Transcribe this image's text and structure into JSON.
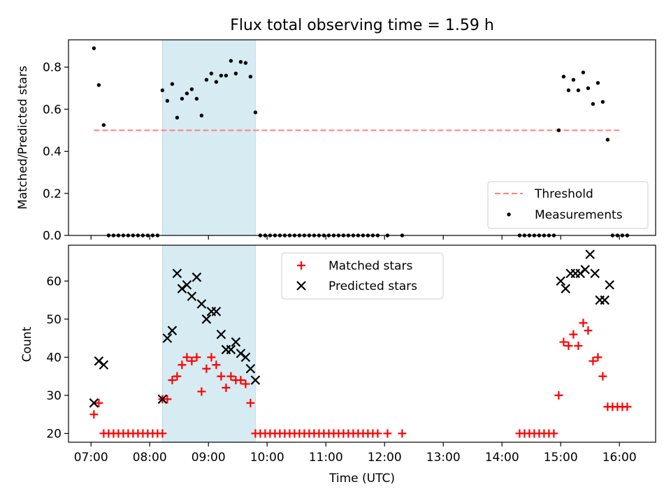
{
  "title": "Flux total observing time = 1.59 h",
  "colors": {
    "threshold": "#ff7f7f",
    "measurement": "#000000",
    "matched": "#ff0000",
    "predicted": "#000000",
    "highlight": "#add8e6"
  },
  "chart_data": [
    {
      "type": "scatter",
      "xlabel": "",
      "ylabel": "Matched/Predicted stars",
      "x_axis": "time (UTC)",
      "xlim": [
        "06:37",
        "16:37"
      ],
      "ylim": [
        0,
        0.93
      ],
      "yticks": [
        "0.0",
        "0.2",
        "0.4",
        "0.6",
        "0.8"
      ],
      "ytick_values": [
        0,
        0.2,
        0.4,
        0.6,
        0.8
      ],
      "grid": false,
      "legend_position": "lower right",
      "highlight_span": [
        "08:13",
        "09:48"
      ],
      "threshold": {
        "name": "Threshold",
        "value": 0.5,
        "x_range": [
          "07:03",
          "16:03"
        ]
      },
      "series": [
        {
          "name": "Measurements",
          "marker": "dot",
          "points": [
            [
              "07:03",
              0.89
            ],
            [
              "07:08",
              0.715
            ],
            [
              "07:13",
              0.525
            ],
            [
              "08:13",
              0.69
            ],
            [
              "08:18",
              0.64
            ],
            [
              "08:23",
              0.72
            ],
            [
              "08:28",
              0.56
            ],
            [
              "08:33",
              0.65
            ],
            [
              "08:38",
              0.675
            ],
            [
              "08:43",
              0.695
            ],
            [
              "08:48",
              0.65
            ],
            [
              "08:53",
              0.57
            ],
            [
              "08:58",
              0.74
            ],
            [
              "09:03",
              0.77
            ],
            [
              "09:08",
              0.73
            ],
            [
              "09:13",
              0.76
            ],
            [
              "09:18",
              0.76
            ],
            [
              "09:23",
              0.83
            ],
            [
              "09:28",
              0.77
            ],
            [
              "09:33",
              0.825
            ],
            [
              "09:38",
              0.82
            ],
            [
              "09:43",
              0.755
            ],
            [
              "09:48",
              0.585
            ],
            [
              "14:58",
              0.5
            ],
            [
              "15:03",
              0.755
            ],
            [
              "15:08",
              0.69
            ],
            [
              "15:13",
              0.74
            ],
            [
              "15:18",
              0.69
            ],
            [
              "15:23",
              0.775
            ],
            [
              "15:28",
              0.7
            ],
            [
              "15:33",
              0.625
            ],
            [
              "15:38",
              0.725
            ],
            [
              "15:43",
              0.635
            ],
            [
              "15:48",
              0.455
            ],
            [
              "07:18",
              0
            ],
            [
              "07:23",
              0
            ],
            [
              "07:28",
              0
            ],
            [
              "07:33",
              0
            ],
            [
              "07:38",
              0
            ],
            [
              "07:43",
              0
            ],
            [
              "07:48",
              0
            ],
            [
              "07:53",
              0
            ],
            [
              "07:58",
              0
            ],
            [
              "08:03",
              0
            ],
            [
              "08:08",
              0
            ],
            [
              "09:53",
              0
            ],
            [
              "09:58",
              0
            ],
            [
              "10:03",
              0
            ],
            [
              "10:08",
              0
            ],
            [
              "10:13",
              0
            ],
            [
              "10:18",
              0
            ],
            [
              "10:23",
              0
            ],
            [
              "10:28",
              0
            ],
            [
              "10:33",
              0
            ],
            [
              "10:38",
              0
            ],
            [
              "10:43",
              0
            ],
            [
              "10:48",
              0
            ],
            [
              "10:53",
              0
            ],
            [
              "10:58",
              0
            ],
            [
              "11:03",
              0
            ],
            [
              "11:08",
              0
            ],
            [
              "11:13",
              0
            ],
            [
              "11:18",
              0
            ],
            [
              "11:23",
              0
            ],
            [
              "11:28",
              0
            ],
            [
              "11:33",
              0
            ],
            [
              "11:38",
              0
            ],
            [
              "11:43",
              0
            ],
            [
              "11:48",
              0
            ],
            [
              "11:53",
              0
            ],
            [
              "12:03",
              0
            ],
            [
              "12:18",
              0
            ],
            [
              "14:18",
              0
            ],
            [
              "14:23",
              0
            ],
            [
              "14:28",
              0
            ],
            [
              "14:33",
              0
            ],
            [
              "14:38",
              0
            ],
            [
              "14:43",
              0
            ],
            [
              "14:48",
              0
            ],
            [
              "14:53",
              0
            ],
            [
              "15:53",
              0
            ],
            [
              "15:58",
              0
            ],
            [
              "16:03",
              0
            ],
            [
              "16:08",
              0
            ]
          ]
        }
      ]
    },
    {
      "type": "scatter",
      "xlabel": "Time (UTC)",
      "ylabel": "Count",
      "x_axis": "time (UTC)",
      "xlim": [
        "06:37",
        "16:37"
      ],
      "ylim": [
        17.7,
        69.4
      ],
      "xticks": [
        "07:00",
        "08:00",
        "09:00",
        "10:00",
        "11:00",
        "12:00",
        "13:00",
        "14:00",
        "15:00",
        "16:00"
      ],
      "yticks": [
        "20",
        "30",
        "40",
        "50",
        "60"
      ],
      "ytick_values": [
        20,
        30,
        40,
        50,
        60
      ],
      "grid": false,
      "legend_position": "upper center",
      "highlight_span": [
        "08:13",
        "09:48"
      ],
      "series": [
        {
          "name": "Matched stars",
          "marker": "plus",
          "points": [
            [
              "07:03",
              25
            ],
            [
              "07:08",
              28
            ],
            [
              "08:13",
              29
            ],
            [
              "08:18",
              29
            ],
            [
              "08:23",
              34
            ],
            [
              "08:28",
              35
            ],
            [
              "08:33",
              38
            ],
            [
              "08:38",
              40
            ],
            [
              "08:43",
              39
            ],
            [
              "08:48",
              40
            ],
            [
              "08:53",
              31
            ],
            [
              "08:58",
              37
            ],
            [
              "09:03",
              40
            ],
            [
              "09:08",
              38
            ],
            [
              "09:13",
              35
            ],
            [
              "09:18",
              32
            ],
            [
              "09:23",
              35
            ],
            [
              "09:28",
              34
            ],
            [
              "09:33",
              34
            ],
            [
              "09:38",
              33
            ],
            [
              "09:43",
              28
            ],
            [
              "14:58",
              30
            ],
            [
              "15:03",
              44
            ],
            [
              "15:08",
              43
            ],
            [
              "15:13",
              46
            ],
            [
              "15:18",
              43
            ],
            [
              "15:23",
              49
            ],
            [
              "15:28",
              47
            ],
            [
              "15:33",
              39
            ],
            [
              "15:38",
              40
            ],
            [
              "15:43",
              35
            ],
            [
              "15:48",
              27
            ],
            [
              "15:53",
              27
            ],
            [
              "15:58",
              27
            ],
            [
              "16:03",
              27
            ],
            [
              "16:08",
              27
            ],
            [
              "07:13",
              20
            ],
            [
              "07:18",
              20
            ],
            [
              "07:23",
              20
            ],
            [
              "07:28",
              20
            ],
            [
              "07:33",
              20
            ],
            [
              "07:38",
              20
            ],
            [
              "07:43",
              20
            ],
            [
              "07:48",
              20
            ],
            [
              "07:53",
              20
            ],
            [
              "07:58",
              20
            ],
            [
              "08:03",
              20
            ],
            [
              "08:08",
              20
            ],
            [
              "08:13",
              20
            ],
            [
              "09:48",
              20
            ],
            [
              "09:53",
              20
            ],
            [
              "09:58",
              20
            ],
            [
              "10:03",
              20
            ],
            [
              "10:08",
              20
            ],
            [
              "10:13",
              20
            ],
            [
              "10:18",
              20
            ],
            [
              "10:23",
              20
            ],
            [
              "10:28",
              20
            ],
            [
              "10:33",
              20
            ],
            [
              "10:38",
              20
            ],
            [
              "10:43",
              20
            ],
            [
              "10:48",
              20
            ],
            [
              "10:53",
              20
            ],
            [
              "10:58",
              20
            ],
            [
              "11:03",
              20
            ],
            [
              "11:08",
              20
            ],
            [
              "11:13",
              20
            ],
            [
              "11:18",
              20
            ],
            [
              "11:23",
              20
            ],
            [
              "11:28",
              20
            ],
            [
              "11:33",
              20
            ],
            [
              "11:38",
              20
            ],
            [
              "11:43",
              20
            ],
            [
              "11:48",
              20
            ],
            [
              "11:53",
              20
            ],
            [
              "12:03",
              20
            ],
            [
              "12:18",
              20
            ],
            [
              "14:18",
              20
            ],
            [
              "14:23",
              20
            ],
            [
              "14:28",
              20
            ],
            [
              "14:33",
              20
            ],
            [
              "14:38",
              20
            ],
            [
              "14:43",
              20
            ],
            [
              "14:48",
              20
            ],
            [
              "14:53",
              20
            ]
          ]
        },
        {
          "name": "Predicted stars",
          "marker": "x",
          "points": [
            [
              "07:03",
              28
            ],
            [
              "07:08",
              39
            ],
            [
              "07:13",
              38
            ],
            [
              "08:13",
              29
            ],
            [
              "08:18",
              45
            ],
            [
              "08:23",
              47
            ],
            [
              "08:28",
              62
            ],
            [
              "08:33",
              58
            ],
            [
              "08:38",
              59
            ],
            [
              "08:43",
              56
            ],
            [
              "08:48",
              61
            ],
            [
              "08:53",
              54
            ],
            [
              "08:58",
              50
            ],
            [
              "09:03",
              52
            ],
            [
              "09:08",
              52
            ],
            [
              "09:13",
              46
            ],
            [
              "09:18",
              42
            ],
            [
              "09:23",
              42
            ],
            [
              "09:28",
              44
            ],
            [
              "09:33",
              41
            ],
            [
              "09:38",
              40
            ],
            [
              "09:43",
              37
            ],
            [
              "09:48",
              34
            ],
            [
              "15:00",
              60
            ],
            [
              "15:05",
              58
            ],
            [
              "15:10",
              62
            ],
            [
              "15:15",
              62
            ],
            [
              "15:20",
              62
            ],
            [
              "15:25",
              63
            ],
            [
              "15:30",
              67
            ],
            [
              "15:35",
              62
            ],
            [
              "15:40",
              55
            ],
            [
              "15:45",
              55
            ],
            [
              "15:50",
              59
            ]
          ]
        }
      ]
    }
  ]
}
